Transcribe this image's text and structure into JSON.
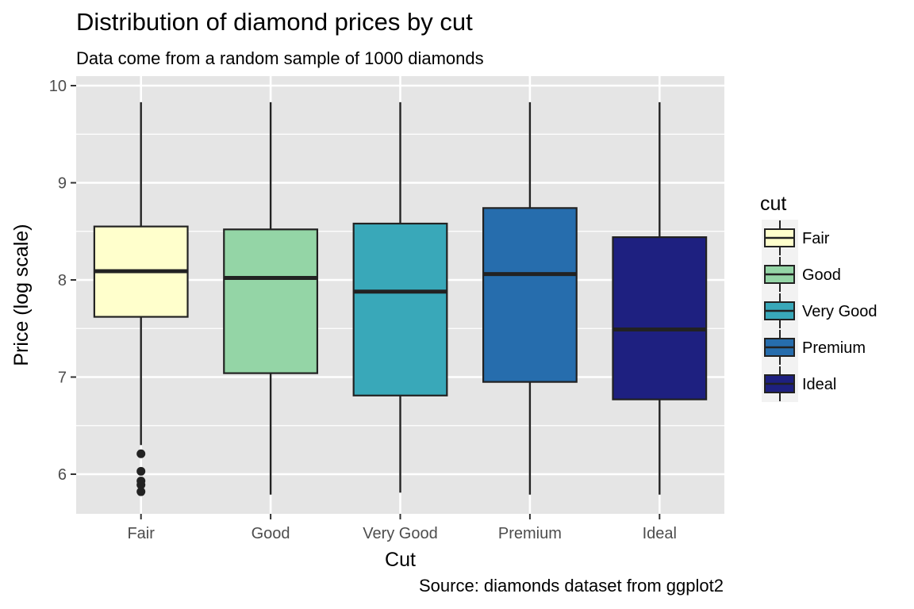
{
  "chart_data": {
    "type": "boxplot",
    "title": "Distribution of diamond prices by cut",
    "subtitle": "Data come from a random sample of 1000 diamonds",
    "caption": "Source: diamonds dataset from ggplot2",
    "xlabel": "Cut",
    "ylabel": "Price (log scale)",
    "ylim": [
      5.6,
      10.0
    ],
    "yticks": [
      6,
      7,
      8,
      9,
      10
    ],
    "grid": true,
    "legend": {
      "title": "cut",
      "placement": "right"
    },
    "categories": [
      "Fair",
      "Good",
      "Very Good",
      "Premium",
      "Ideal"
    ],
    "boxes": [
      {
        "name": "Fair",
        "color": "#ffffcc",
        "whisker_low": 6.3,
        "q1": 7.62,
        "median": 8.09,
        "q3": 8.55,
        "whisker_high": 9.83,
        "outliers": [
          6.21,
          6.03,
          5.93,
          5.89,
          5.82
        ]
      },
      {
        "name": "Good",
        "color": "#94d5a6",
        "whisker_low": 5.79,
        "q1": 7.04,
        "median": 8.02,
        "q3": 8.52,
        "whisker_high": 9.83,
        "outliers": []
      },
      {
        "name": "Very Good",
        "color": "#39a8b9",
        "whisker_low": 5.81,
        "q1": 6.81,
        "median": 7.88,
        "q3": 8.58,
        "whisker_high": 9.83,
        "outliers": []
      },
      {
        "name": "Premium",
        "color": "#266dad",
        "whisker_low": 5.79,
        "q1": 6.95,
        "median": 8.06,
        "q3": 8.74,
        "whisker_high": 9.83,
        "outliers": []
      },
      {
        "name": "Ideal",
        "color": "#1e2080",
        "whisker_low": 5.79,
        "q1": 6.77,
        "median": 7.49,
        "q3": 8.44,
        "whisker_high": 9.83,
        "outliers": []
      }
    ],
    "colors": {
      "panel": "#e5e5e5",
      "grid": "#ffffff",
      "outline": "#222222",
      "tick_mark": "#333333"
    }
  }
}
